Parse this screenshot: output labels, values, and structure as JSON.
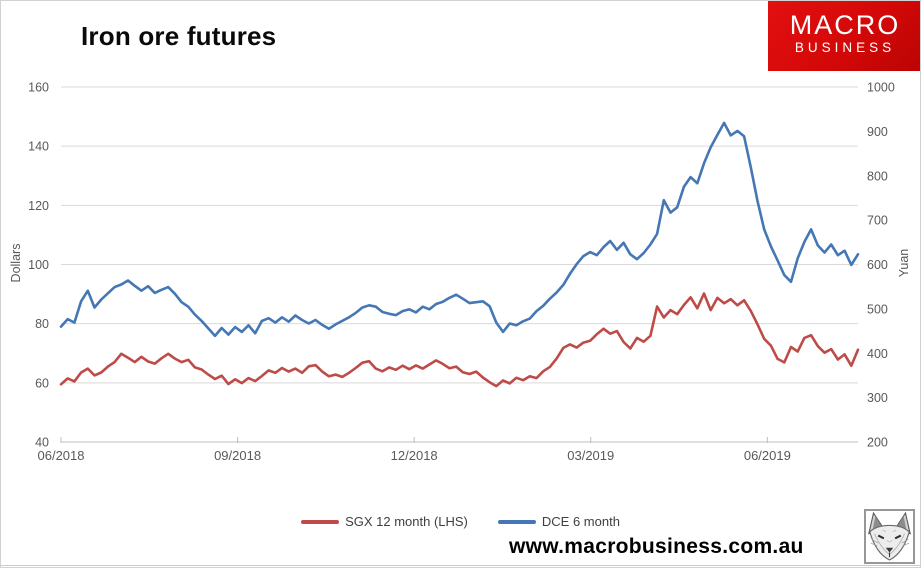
{
  "header": {
    "title": "Iron ore futures",
    "logo": {
      "line1": "MACRO",
      "line2": "BUSINESS",
      "bg_color": "#d40808",
      "text_color": "#ffffff"
    }
  },
  "footer": {
    "website": "www.macrobusiness.com.au",
    "fox_icon_name": "fox-sketch"
  },
  "chart_data": {
    "type": "line",
    "title": "Iron ore futures",
    "ylabel_left": "Dollars",
    "ylabel_right": "Yuan",
    "y_left": {
      "min": 40,
      "max": 160,
      "ticks": [
        160,
        140,
        120,
        100,
        80,
        60,
        40
      ]
    },
    "y_right": {
      "min": 200,
      "max": 1000,
      "ticks": [
        1000,
        900,
        800,
        700,
        600,
        500,
        400,
        300,
        200
      ]
    },
    "x_ticks": {
      "labels": [
        "06/2018",
        "09/2018",
        "12/2018",
        "03/2019",
        "06/2019"
      ],
      "month_positions": [
        0,
        3,
        6,
        9,
        12
      ],
      "months_total": 13.54
    },
    "grid_on": true,
    "grid_color": "#d9d9d9",
    "axis_line_color": "#bfbfbf",
    "tick_text_color": "#595959",
    "legend_position": "bottom",
    "series": [
      {
        "name": "SGX 12 month (LHS)",
        "axis": "left",
        "unit": "USD",
        "color": "#be4b48",
        "values": [
          59.5,
          61.5,
          60.5,
          63.5,
          64.8,
          62.5,
          63.5,
          65.5,
          67,
          69.8,
          68.5,
          67,
          68.8,
          67.2,
          66.5,
          68.3,
          69.8,
          68.2,
          67,
          67.8,
          65.2,
          64.5,
          62.8,
          61.3,
          62.4,
          59.6,
          61.2,
          59.9,
          61.6,
          60.6,
          62.3,
          64.2,
          63.4,
          65,
          63.8,
          64.8,
          63.4,
          65.6,
          66,
          63.8,
          62.2,
          62.8,
          62,
          63.4,
          65,
          66.8,
          67.3,
          64.8,
          63.9,
          65.2,
          64.4,
          65.8,
          64.6,
          65.9,
          64.8,
          66.2,
          67.6,
          66.4,
          64.9,
          65.5,
          63.6,
          63,
          63.8,
          61.8,
          60.2,
          58.9,
          60.8,
          59.8,
          61.7,
          60.9,
          62.2,
          61.6,
          63.9,
          65.4,
          68.2,
          71.8,
          73,
          71.9,
          73.6,
          74.2,
          76.4,
          78.3,
          76.6,
          77.5,
          73.8,
          71.6,
          75.2,
          73.9,
          75.9,
          85.8,
          82.1,
          84.6,
          83.2,
          86.3,
          88.9,
          85.2,
          90.2,
          84.6,
          88.7,
          86.9,
          88.3,
          86.2,
          87.9,
          84.3,
          79.8,
          74.9,
          72.6,
          68.1,
          66.9,
          72.1,
          70.6,
          75.2,
          76.1,
          72.4,
          70.2,
          71.4,
          67.9,
          69.6,
          65.8,
          71.2
        ]
      },
      {
        "name": "DCE 6 month",
        "axis": "right",
        "unit": "CNY",
        "color": "#4577b5",
        "values": [
          460,
          477,
          469,
          517,
          541,
          503,
          521,
          535,
          549,
          555,
          564,
          552,
          541,
          551,
          536,
          543,
          549,
          534,
          515,
          505,
          487,
          473,
          456,
          439,
          457,
          442,
          459,
          448,
          463,
          445,
          473,
          479,
          469,
          481,
          471,
          485,
          475,
          467,
          475,
          464,
          455,
          465,
          473,
          481,
          491,
          503,
          508,
          505,
          493,
          489,
          486,
          495,
          499,
          492,
          505,
          499,
          511,
          516,
          525,
          532,
          523,
          513,
          515,
          517,
          506,
          469,
          448,
          467,
          463,
          472,
          478,
          495,
          507,
          523,
          537,
          554,
          579,
          601,
          619,
          628,
          621,
          639,
          653,
          633,
          649,
          623,
          612,
          626,
          645,
          669,
          745,
          717,
          729,
          775,
          797,
          783,
          828,
          864,
          892,
          919,
          891,
          901,
          889,
          819,
          743,
          679,
          641,
          609,
          576,
          561,
          614,
          651,
          679,
          643,
          627,
          645,
          621,
          631,
          599,
          623
        ]
      }
    ]
  }
}
